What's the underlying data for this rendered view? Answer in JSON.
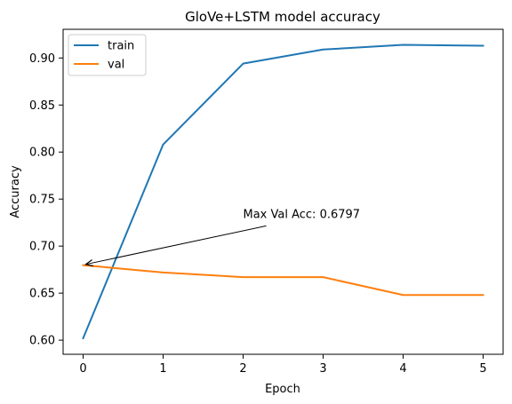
{
  "chart_data": {
    "type": "line",
    "title": "GloVe+LSTM model accuracy",
    "xlabel": "Epoch",
    "ylabel": "Accuracy",
    "x": [
      0,
      1,
      2,
      3,
      4,
      5
    ],
    "xlim": [
      -0.25,
      5.25
    ],
    "ylim": [
      0.585,
      0.9305
    ],
    "xticks": [
      "0",
      "1",
      "2",
      "3",
      "4",
      "5"
    ],
    "yticks": [
      "0.60",
      "0.65",
      "0.70",
      "0.75",
      "0.80",
      "0.85",
      "0.90"
    ],
    "grid": false,
    "legend_position": "upper-left",
    "series": [
      {
        "name": "train",
        "color": "#1f77b4",
        "values": [
          0.602,
          0.808,
          0.894,
          0.909,
          0.914,
          0.913
        ]
      },
      {
        "name": "val",
        "color": "#ff7f0e",
        "values": [
          0.6797,
          0.672,
          0.667,
          0.667,
          0.648,
          0.648
        ]
      }
    ],
    "annotations": [
      {
        "text": "Max Val Acc: 0.6797",
        "point": {
          "x": 0,
          "y": 0.6797
        },
        "text_at": {
          "x": 2,
          "y": 0.73
        }
      }
    ]
  }
}
